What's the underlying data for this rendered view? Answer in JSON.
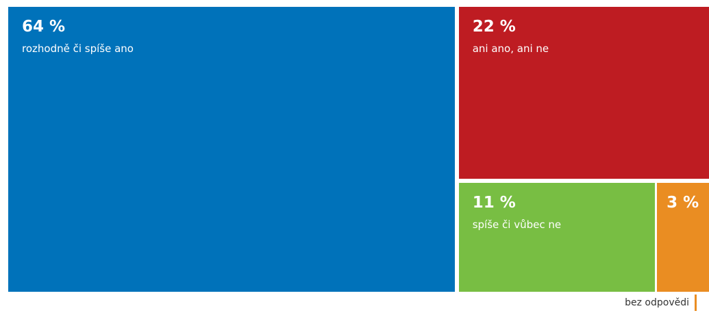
{
  "chart_data": {
    "type": "treemap",
    "unit": "%",
    "items": [
      {
        "value": 64,
        "label": "rozhodně či spíše ano",
        "color": "#0072BA"
      },
      {
        "value": 22,
        "label": "ani ano, ani ne",
        "color": "#BE1C22"
      },
      {
        "value": 11,
        "label": "spíše či vůbec ne",
        "color": "#78BE43"
      },
      {
        "value": 3,
        "label": "bez odpovědi",
        "color": "#EA8D22",
        "label_position": "outside-below"
      }
    ]
  }
}
